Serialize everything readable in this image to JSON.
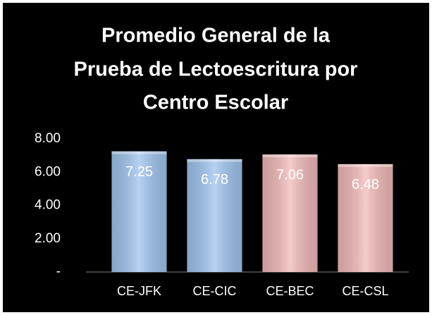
{
  "chart_data": {
    "type": "bar",
    "title": [
      "Promedio General de la",
      "Prueba de Lectoescritura por",
      "Centro Escolar"
    ],
    "categories": [
      "CE-JFK",
      "CE-CIC",
      "CE-BEC",
      "CE-CSL"
    ],
    "values": [
      7.25,
      6.78,
      7.06,
      6.48
    ],
    "colors": [
      "#9ec4ef",
      "#9ec4ef",
      "#f2b9b9",
      "#f2b9b9"
    ],
    "ylim": [
      0,
      8
    ],
    "yticks": [
      {
        "value": 0,
        "label": "-"
      },
      {
        "value": 2,
        "label": "2.00"
      },
      {
        "value": 4,
        "label": "4.00"
      },
      {
        "value": 6,
        "label": "6.00"
      },
      {
        "value": 8,
        "label": "8.00"
      }
    ],
    "grid": false
  }
}
